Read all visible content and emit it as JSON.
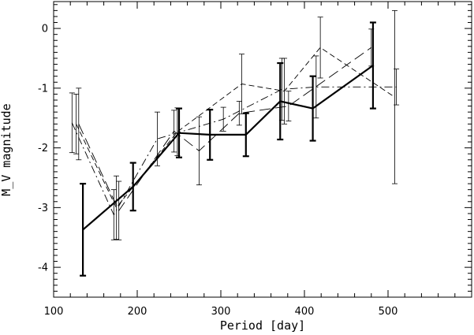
{
  "chart_data": {
    "type": "line",
    "xlabel": "Period [day]",
    "ylabel": "M_V magnitude",
    "xlim": [
      100,
      600
    ],
    "ylim": [
      -4.5,
      0.45
    ],
    "y_inverted": true,
    "grid": false,
    "x_ticks": [
      100,
      200,
      300,
      400,
      500
    ],
    "y_ticks": [
      0,
      -1,
      -2,
      -3,
      -4
    ],
    "series": [
      {
        "style": "solid-thick",
        "points": [
          {
            "x": 135,
            "y": -3.37,
            "err": 0.77
          },
          {
            "x": 195,
            "y": -2.65,
            "err": 0.4
          },
          {
            "x": 250,
            "y": -1.75,
            "err": 0.41
          },
          {
            "x": 287,
            "y": -1.78,
            "err": 0.42
          },
          {
            "x": 330,
            "y": -1.78,
            "err": 0.36
          },
          {
            "x": 371,
            "y": -1.22,
            "err": 0.64
          },
          {
            "x": 410,
            "y": -1.34,
            "err": 0.54
          },
          {
            "x": 482,
            "y": -0.62,
            "err": 0.72
          }
        ]
      },
      {
        "style": "dashed",
        "points": [
          {
            "x": 127,
            "y": -1.6,
            "err": 0.5
          },
          {
            "x": 175,
            "y": -3.0,
            "err": 0.53
          },
          {
            "x": 248,
            "y": -1.73,
            "err": 0.4
          },
          {
            "x": 325,
            "y": -0.93,
            "err": 0.5
          },
          {
            "x": 376,
            "y": -1.05,
            "err": 0.55
          },
          {
            "x": 419,
            "y": -0.32,
            "err": 0.51
          },
          {
            "x": 508,
            "y": -1.15,
            "err": 1.45
          }
        ]
      },
      {
        "style": "long-dashed",
        "points": [
          {
            "x": 130,
            "y": -1.6,
            "err": 0.6
          },
          {
            "x": 178,
            "y": -3.05,
            "err": 0.49
          },
          {
            "x": 244,
            "y": -1.72,
            "err": 0.35
          },
          {
            "x": 274,
            "y": -2.05,
            "err": 0.57
          },
          {
            "x": 322,
            "y": -1.42,
            "err": 0.2
          },
          {
            "x": 381,
            "y": -1.3,
            "err": 0.25
          },
          {
            "x": 480,
            "y": -0.32,
            "err": 0.31
          }
        ]
      },
      {
        "style": "dash-dot",
        "points": [
          {
            "x": 122,
            "y": -1.58,
            "err": 0.5
          },
          {
            "x": 172,
            "y": -3.12,
            "err": 0.42
          },
          {
            "x": 224,
            "y": -1.85,
            "err": 0.45
          },
          {
            "x": 303,
            "y": -1.52,
            "err": 0.2
          },
          {
            "x": 373,
            "y": -1.02,
            "err": 0.52
          },
          {
            "x": 414,
            "y": -0.98,
            "err": 0.52
          },
          {
            "x": 510,
            "y": -0.98,
            "err": 0.3
          }
        ]
      }
    ]
  }
}
